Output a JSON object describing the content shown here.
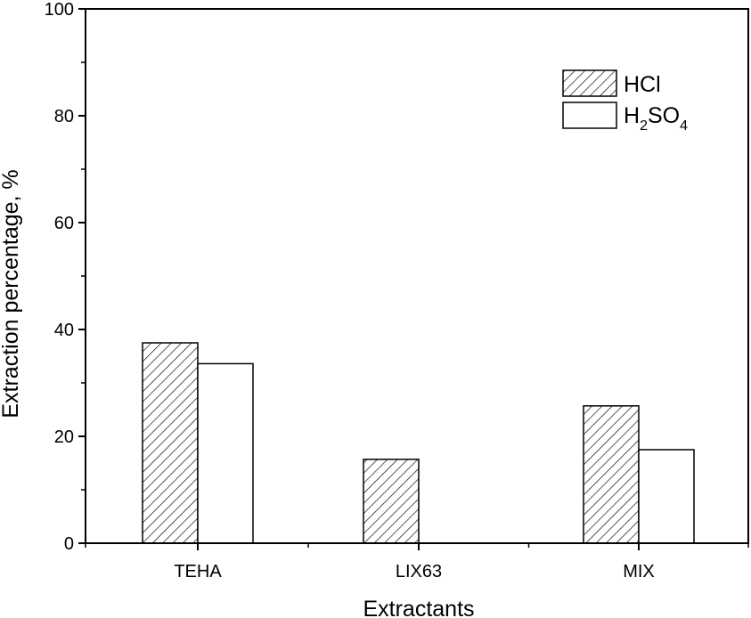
{
  "chart_data": {
    "type": "bar",
    "title": "",
    "xlabel": "Extractants",
    "ylabel": "Extraction percentage, %",
    "categories": [
      "TEHA",
      "LIX63",
      "MIX"
    ],
    "series": [
      {
        "name": "HCl",
        "values": [
          37.5,
          15.7,
          25.7
        ],
        "fill": "hatch",
        "color": "#000000"
      },
      {
        "name": "H2SO4",
        "legend_parts": {
          "a": "H",
          "sub1": "2",
          "b": "SO",
          "sub2": "4"
        },
        "values": [
          33.6,
          0,
          17.5
        ],
        "fill": "none",
        "color": "#000000"
      }
    ],
    "ylim": [
      0,
      100
    ],
    "yticks": [
      0,
      20,
      40,
      60,
      80,
      100
    ],
    "y_minor_step": 10,
    "grid": false,
    "legend_position": "top-right"
  }
}
